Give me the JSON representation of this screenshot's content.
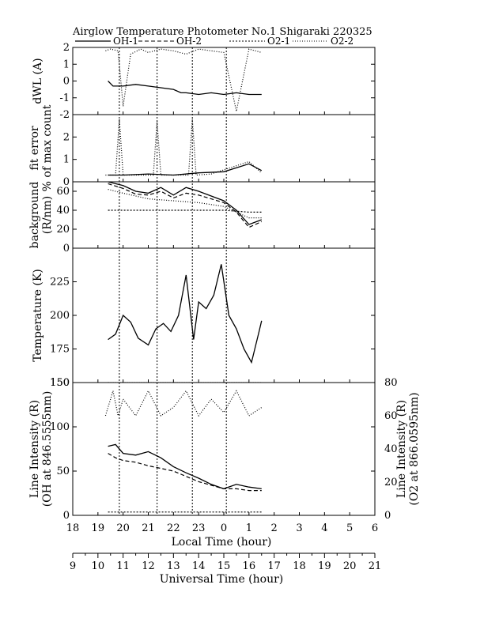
{
  "title": "Airglow Temperature Photometer No.1  Shigaraki  220325",
  "legend": [
    "OH-1",
    "OH-2",
    "O2-1",
    "O2-2"
  ],
  "chart_data": [
    {
      "type": "line",
      "panel": "dWL",
      "ylabel": "dWL (A)",
      "ylim": [
        -2,
        2
      ],
      "yticks": [
        "-2",
        "-1",
        "0",
        "1",
        "2"
      ],
      "series": [
        {
          "name": "OH-1",
          "x": [
            19.4,
            19.6,
            20.0,
            20.5,
            21.0,
            21.5,
            22.0,
            22.3,
            22.5,
            23.0,
            23.5,
            24.0,
            24.5,
            25.0,
            25.5
          ],
          "values": [
            0.0,
            -0.3,
            -0.3,
            -0.2,
            -0.3,
            -0.4,
            -0.5,
            -0.7,
            -0.7,
            -0.8,
            -0.7,
            -0.8,
            -0.7,
            -0.8,
            -0.8
          ]
        },
        {
          "name": "O2-2",
          "x": [
            19.3,
            19.5,
            19.8,
            20.0,
            20.3,
            20.7,
            21.0,
            21.5,
            22.0,
            22.5,
            23.0,
            23.5,
            24.0,
            24.5,
            25.0,
            25.5
          ],
          "values": [
            1.8,
            1.9,
            1.8,
            -1.5,
            1.6,
            1.9,
            1.7,
            1.9,
            1.8,
            1.6,
            1.9,
            1.8,
            1.7,
            -1.8,
            1.9,
            1.7
          ]
        }
      ]
    },
    {
      "type": "line",
      "panel": "fit error",
      "ylabel": [
        "fit error",
        "% of max count"
      ],
      "ylim": [
        0,
        3
      ],
      "yticks": [
        "0",
        "1",
        "2"
      ],
      "series": [
        {
          "name": "OH-1",
          "x": [
            19.4,
            20.0,
            21.0,
            22.0,
            23.0,
            24.0,
            25.0,
            25.5
          ],
          "values": [
            0.3,
            0.3,
            0.35,
            0.3,
            0.4,
            0.45,
            0.8,
            0.5
          ]
        },
        {
          "name": "O2-2",
          "x": [
            19.3,
            19.7,
            19.85,
            20.0,
            21.2,
            21.35,
            21.5,
            22.6,
            22.75,
            22.9,
            23.5,
            25.0,
            25.5
          ],
          "values": [
            0.3,
            0.3,
            2.8,
            0.3,
            0.3,
            2.7,
            0.3,
            0.3,
            2.8,
            0.3,
            0.35,
            0.9,
            0.4
          ]
        }
      ]
    },
    {
      "type": "line",
      "panel": "background",
      "ylabel": [
        "background",
        "(R/nm)"
      ],
      "ylim": [
        0,
        70
      ],
      "yticks": [
        "0",
        "20",
        "40",
        "60"
      ],
      "series": [
        {
          "name": "OH-1",
          "x": [
            19.4,
            20.0,
            20.5,
            21.0,
            21.5,
            22.0,
            22.5,
            23.0,
            23.5,
            24.0,
            24.5,
            25.0,
            25.5
          ],
          "values": [
            70,
            66,
            60,
            58,
            64,
            56,
            64,
            60,
            55,
            50,
            40,
            25,
            30
          ]
        },
        {
          "name": "OH-2",
          "x": [
            19.4,
            20.0,
            20.5,
            21.0,
            21.5,
            22.0,
            22.5,
            23.0,
            23.5,
            24.0,
            24.5,
            25.0,
            25.5
          ],
          "values": [
            68,
            63,
            57,
            56,
            60,
            53,
            58,
            56,
            52,
            48,
            38,
            22,
            28
          ]
        },
        {
          "name": "O2-1",
          "x": [
            19.4,
            20.0,
            21.0,
            22.0,
            23.0,
            24.0,
            25.0,
            25.5
          ],
          "values": [
            40,
            40,
            40,
            40,
            40,
            40,
            38,
            38
          ]
        },
        {
          "name": "O2-2",
          "x": [
            19.4,
            20.0,
            21.0,
            22.0,
            23.0,
            24.0,
            25.0,
            25.5
          ],
          "values": [
            62,
            58,
            52,
            50,
            48,
            44,
            32,
            32
          ]
        }
      ]
    },
    {
      "type": "line",
      "panel": "temperature",
      "ylabel": "Temperature (K)",
      "ylim": [
        150,
        250
      ],
      "yticks": [
        "150",
        "175",
        "200",
        "225"
      ],
      "series": [
        {
          "name": "OH-1",
          "x": [
            19.4,
            19.7,
            20.0,
            20.3,
            20.6,
            21.0,
            21.3,
            21.6,
            21.9,
            22.2,
            22.5,
            22.8,
            23.0,
            23.3,
            23.6,
            23.9,
            24.2,
            24.5,
            24.8,
            25.1,
            25.4,
            25.5
          ],
          "values": [
            182,
            186,
            200,
            195,
            183,
            178,
            190,
            194,
            188,
            200,
            230,
            182,
            210,
            205,
            215,
            238,
            200,
            190,
            175,
            165,
            188,
            196
          ]
        },
        {
          "name": "O2-2",
          "x": [
            19.4,
            19.6,
            19.8,
            20.0,
            21.0,
            21.2,
            21.4,
            22.6,
            22.75,
            22.9,
            24.0,
            24.1,
            24.3,
            25.5
          ],
          "values": [
            150,
            150,
            150,
            150,
            150,
            150,
            150,
            150,
            150,
            150,
            150,
            150,
            150,
            150
          ]
        }
      ]
    },
    {
      "type": "line",
      "panel": "intensity",
      "ylabel": [
        "Line Intensity (R)",
        "(OH at 846.5555nm)"
      ],
      "ylabel_right": [
        "Line Intensity (R)",
        "(O2 at 866.0595nm)"
      ],
      "ylim": [
        0,
        150
      ],
      "ylim_right": [
        0,
        80
      ],
      "yticks": [
        "0",
        "50",
        "100",
        "150"
      ],
      "yticks_right": [
        "0",
        "20",
        "40",
        "60",
        "80"
      ],
      "series": [
        {
          "name": "OH-1",
          "x": [
            19.4,
            19.7,
            20.0,
            20.5,
            21.0,
            21.5,
            22.0,
            22.5,
            23.0,
            23.5,
            24.0,
            24.5,
            25.0,
            25.5
          ],
          "values": [
            78,
            80,
            70,
            68,
            72,
            65,
            55,
            48,
            42,
            35,
            30,
            35,
            32,
            30
          ]
        },
        {
          "name": "OH-2",
          "x": [
            19.4,
            19.7,
            20.0,
            20.5,
            21.0,
            21.5,
            22.0,
            22.5,
            23.0,
            23.5,
            24.0,
            24.5,
            25.0,
            25.5
          ],
          "values": [
            70,
            65,
            62,
            60,
            56,
            53,
            50,
            44,
            38,
            34,
            30,
            30,
            28,
            28
          ]
        },
        {
          "name": "O2-1",
          "x": [
            19.4,
            20.0,
            21.0,
            22.0,
            23.0,
            24.0,
            25.0,
            25.5
          ],
          "values": [
            2,
            2,
            2,
            2,
            2,
            2,
            2,
            2
          ]
        },
        {
          "name": "O2-2",
          "x": [
            19.3,
            19.6,
            19.8,
            20.0,
            20.5,
            21.0,
            21.5,
            22.0,
            22.5,
            23.0,
            23.5,
            24.0,
            24.5,
            25.0,
            25.5
          ],
          "values": [
            60,
            75,
            60,
            70,
            60,
            75,
            60,
            65,
            75,
            60,
            70,
            62,
            75,
            60,
            65
          ]
        }
      ]
    }
  ],
  "xaxis_local": {
    "label": "Local Time (hour)",
    "ticks": [
      "18",
      "19",
      "20",
      "21",
      "22",
      "23",
      "0",
      "1",
      "2",
      "3",
      "4",
      "5",
      "6"
    ]
  },
  "xaxis_universal": {
    "label": "Universal Time (hour)",
    "ticks": [
      "9",
      "10",
      "11",
      "12",
      "13",
      "14",
      "15",
      "16",
      "17",
      "18",
      "19",
      "20",
      "21"
    ]
  }
}
